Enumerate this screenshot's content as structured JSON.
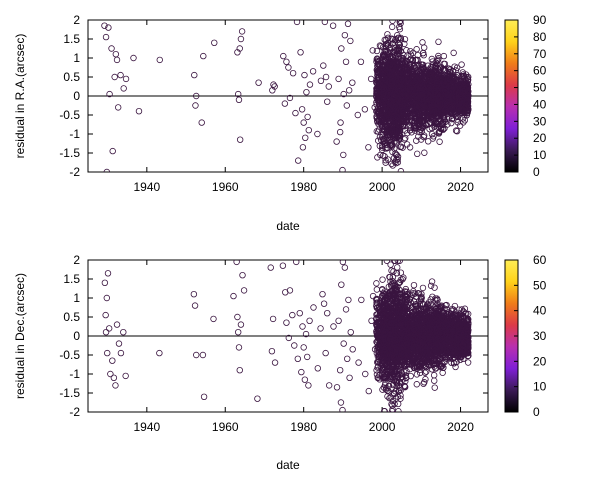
{
  "colors": {
    "point_stroke": "#3a1540",
    "zero_line": "#000000",
    "palette": [
      "#000000",
      "#3a1a55",
      "#7f1fd6",
      "#b82fb0",
      "#dc3a48",
      "#f07c1a",
      "#ffd21a",
      "#ffee55"
    ]
  },
  "chart_data": [
    {
      "type": "scatter",
      "title": "",
      "xlabel": "date",
      "ylabel": "residual in R.A.(arcsec)",
      "xlim": [
        1925,
        2027
      ],
      "ylim": [
        -2,
        2
      ],
      "x_ticks": [
        1940,
        1960,
        1980,
        2000,
        2020
      ],
      "y_ticks": [
        -2,
        -1.5,
        -1,
        -0.5,
        0,
        0.5,
        1,
        1.5,
        2
      ],
      "y_tick_labels": [
        "-2",
        "-1.5",
        "-1",
        "-0.5",
        "0",
        "0.5",
        "1",
        "1.5",
        "2"
      ],
      "reference_line": 0,
      "colorbar": {
        "min": 0,
        "max": 90,
        "ticks": [
          "0",
          "10",
          "20",
          "30",
          "40",
          "50",
          "60",
          "70",
          "80",
          "90"
        ]
      },
      "marker": "open-circle",
      "points": [
        [
          1929.2,
          1.85
        ],
        [
          1929.6,
          1.55
        ],
        [
          1930.2,
          1.8
        ],
        [
          1930.5,
          0.05
        ],
        [
          1931.0,
          1.25
        ],
        [
          1931.3,
          -1.45
        ],
        [
          1931.8,
          0.5
        ],
        [
          1932.1,
          1.1
        ],
        [
          1932.4,
          0.95
        ],
        [
          1932.7,
          -0.3
        ],
        [
          1933.3,
          0.55
        ],
        [
          1934.1,
          0.2
        ],
        [
          1934.7,
          0.45
        ],
        [
          1936.6,
          1.0
        ],
        [
          1938.0,
          -0.4
        ],
        [
          1929.8,
          -2.0
        ],
        [
          1943.3,
          0.95
        ],
        [
          1952.1,
          0.55
        ],
        [
          1952.4,
          -0.25
        ],
        [
          1952.6,
          0.0
        ],
        [
          1954.0,
          -0.7
        ],
        [
          1954.4,
          1.05
        ],
        [
          1957.2,
          1.4
        ],
        [
          1963.1,
          1.15
        ],
        [
          1963.3,
          0.05
        ],
        [
          1963.5,
          -0.1
        ],
        [
          1963.8,
          -1.15
        ],
        [
          1964.0,
          1.5
        ],
        [
          1964.3,
          1.7
        ],
        [
          1963.7,
          1.25
        ],
        [
          1968.5,
          0.35
        ],
        [
          1972.0,
          0.15
        ],
        [
          1972.3,
          0.3
        ],
        [
          1972.6,
          0.25
        ],
        [
          1974.8,
          1.05
        ],
        [
          1975.2,
          -0.2
        ],
        [
          1975.6,
          0.9
        ],
        [
          1976.1,
          0.75
        ],
        [
          1976.5,
          -0.05
        ],
        [
          1977.3,
          0.6
        ],
        [
          1977.9,
          -0.45
        ],
        [
          1978.3,
          1.95
        ],
        [
          1978.6,
          -1.7
        ],
        [
          1979.2,
          1.15
        ],
        [
          1979.6,
          -0.35
        ],
        [
          1980.0,
          -0.7
        ],
        [
          1980.4,
          -1.1
        ],
        [
          1980.7,
          0.1
        ],
        [
          1981.0,
          -0.55
        ],
        [
          1981.3,
          -0.9
        ],
        [
          1981.6,
          0.3
        ],
        [
          1979.8,
          -1.35
        ],
        [
          1980.2,
          0.55
        ],
        [
          1982.4,
          0.65
        ],
        [
          1983.5,
          -1.0
        ],
        [
          1984.4,
          0.4
        ],
        [
          1985.0,
          0.8
        ],
        [
          1985.4,
          1.95
        ],
        [
          1985.7,
          0.5
        ],
        [
          1986.0,
          -0.15
        ],
        [
          1986.4,
          0.25
        ],
        [
          1987.5,
          1.85
        ],
        [
          1988.4,
          -1.2
        ],
        [
          1988.9,
          0.45
        ],
        [
          1989.3,
          -0.95
        ],
        [
          1989.6,
          1.25
        ],
        [
          1989.9,
          -1.95
        ],
        [
          1990.2,
          0.05
        ],
        [
          1990.5,
          1.6
        ],
        [
          1990.8,
          0.9
        ],
        [
          1991.0,
          -0.25
        ],
        [
          1991.3,
          1.9
        ],
        [
          1991.6,
          0.15
        ],
        [
          1989.4,
          -0.7
        ],
        [
          1990.1,
          -1.55
        ],
        [
          1991.9,
          1.45
        ],
        [
          1992.4,
          0.35
        ],
        [
          1993.8,
          -0.5
        ],
        [
          1994.6,
          0.9
        ],
        [
          1995.6,
          -0.35
        ],
        [
          1996.5,
          -1.35
        ],
        [
          1997.2,
          0.45
        ],
        [
          1997.6,
          1.2
        ],
        [
          1998.1,
          -0.3
        ]
      ]
    },
    {
      "type": "scatter",
      "title": "",
      "xlabel": "date",
      "ylabel": "residual in Dec.(arcsec)",
      "xlim": [
        1925,
        2027
      ],
      "ylim": [
        -2,
        2
      ],
      "x_ticks": [
        1940,
        1960,
        1980,
        2000,
        2020
      ],
      "y_ticks": [
        -2,
        -1.5,
        -1,
        -0.5,
        0,
        0.5,
        1,
        1.5,
        2
      ],
      "y_tick_labels": [
        "-2",
        "-1.5",
        "-1",
        "-0.5",
        "0",
        "0.5",
        "1",
        "1.5",
        "2"
      ],
      "reference_line": 0,
      "colorbar": {
        "min": 0,
        "max": 60,
        "ticks": [
          "0",
          "10",
          "20",
          "30",
          "40",
          "50",
          "60"
        ]
      },
      "marker": "open-circle",
      "points": [
        [
          1929.3,
          1.4
        ],
        [
          1929.5,
          0.55
        ],
        [
          1929.8,
          1.0
        ],
        [
          1930.1,
          1.65
        ],
        [
          1929.6,
          0.1
        ],
        [
          1929.9,
          -0.45
        ],
        [
          1930.4,
          0.2
        ],
        [
          1930.7,
          -1.0
        ],
        [
          1931.2,
          -0.65
        ],
        [
          1931.6,
          -1.1
        ],
        [
          1932.0,
          -1.3
        ],
        [
          1932.4,
          0.3
        ],
        [
          1932.9,
          -0.2
        ],
        [
          1933.4,
          -0.45
        ],
        [
          1934.0,
          0.1
        ],
        [
          1934.6,
          -1.05
        ],
        [
          1943.2,
          -0.45
        ],
        [
          1952.0,
          1.1
        ],
        [
          1952.3,
          0.8
        ],
        [
          1952.6,
          -0.5
        ],
        [
          1954.3,
          -0.5
        ],
        [
          1954.6,
          -1.6
        ],
        [
          1957.0,
          0.45
        ],
        [
          1962.1,
          1.05
        ],
        [
          1962.9,
          1.95
        ],
        [
          1963.1,
          0.5
        ],
        [
          1963.3,
          0.1
        ],
        [
          1963.5,
          -0.3
        ],
        [
          1963.7,
          -0.9
        ],
        [
          1964.0,
          0.3
        ],
        [
          1964.4,
          1.6
        ],
        [
          1964.8,
          1.2
        ],
        [
          1968.2,
          -1.65
        ],
        [
          1971.6,
          1.8
        ],
        [
          1971.9,
          -0.4
        ],
        [
          1972.2,
          0.45
        ],
        [
          1972.7,
          -0.7
        ],
        [
          1974.7,
          1.85
        ],
        [
          1975.3,
          1.15
        ],
        [
          1975.6,
          0.35
        ],
        [
          1976.2,
          -0.05
        ],
        [
          1976.5,
          1.2
        ],
        [
          1977.1,
          0.55
        ],
        [
          1977.6,
          -0.25
        ],
        [
          1978.1,
          1.95
        ],
        [
          1978.5,
          -0.6
        ],
        [
          1979.0,
          0.6
        ],
        [
          1979.4,
          -0.95
        ],
        [
          1979.7,
          0.25
        ],
        [
          1980.0,
          -0.3
        ],
        [
          1980.3,
          -1.15
        ],
        [
          1980.6,
          0.05
        ],
        [
          1980.9,
          -0.55
        ],
        [
          1981.2,
          -1.3
        ],
        [
          1981.5,
          0.4
        ],
        [
          1982.5,
          0.75
        ],
        [
          1983.6,
          -0.85
        ],
        [
          1984.3,
          0.2
        ],
        [
          1984.8,
          1.1
        ],
        [
          1985.2,
          0.85
        ],
        [
          1985.6,
          -0.45
        ],
        [
          1986.0,
          0.6
        ],
        [
          1986.5,
          -1.3
        ],
        [
          1987.6,
          0.25
        ],
        [
          1988.5,
          -1.35
        ],
        [
          1988.9,
          0.4
        ],
        [
          1989.3,
          -0.9
        ],
        [
          1989.6,
          1.35
        ],
        [
          1989.9,
          -1.95
        ],
        [
          1990.2,
          -0.2
        ],
        [
          1990.5,
          1.8
        ],
        [
          1990.8,
          0.7
        ],
        [
          1991.1,
          -0.6
        ],
        [
          1991.4,
          0.95
        ],
        [
          1991.7,
          -1.1
        ],
        [
          1989.5,
          -1.75
        ],
        [
          1990.0,
          1.95
        ],
        [
          1992.0,
          0.1
        ],
        [
          1992.5,
          -0.35
        ],
        [
          1994.0,
          -0.7
        ],
        [
          1994.7,
          0.95
        ],
        [
          1995.7,
          -1.0
        ],
        [
          1996.6,
          -1.45
        ],
        [
          1997.3,
          0.4
        ],
        [
          1997.7,
          1.05
        ],
        [
          1998.2,
          -0.35
        ]
      ]
    }
  ]
}
